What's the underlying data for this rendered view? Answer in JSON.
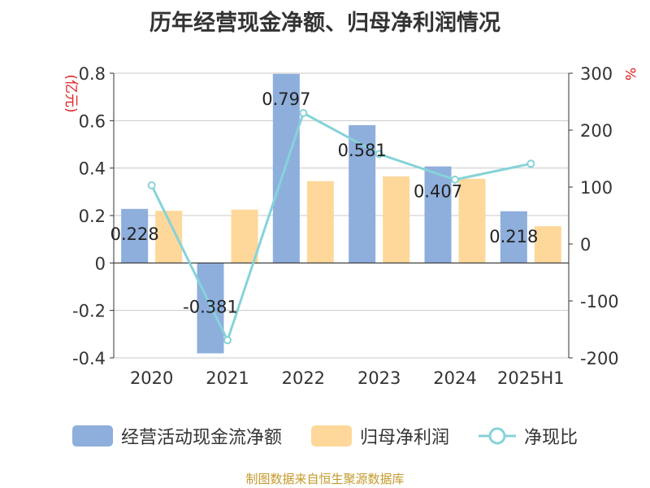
{
  "chart_data": {
    "type": "bar",
    "title": "历年经营现金净额、归母净利润情况",
    "categories": [
      "2020",
      "2021",
      "2022",
      "2023",
      "2024",
      "2025H1"
    ],
    "left_axis": {
      "unit": "(亿元)",
      "ylim": [
        -0.4,
        0.8
      ],
      "ticks": [
        "0.8",
        "0.6",
        "0.4",
        "0.2",
        "0",
        "-0.2",
        "-0.4"
      ]
    },
    "right_axis": {
      "unit": "%",
      "ylim": [
        -200,
        300
      ],
      "ticks": [
        "300",
        "200",
        "100",
        "0",
        "-100",
        "-200"
      ]
    },
    "series": [
      {
        "name": "经营活动现金流净额",
        "type": "bar",
        "axis": "left",
        "color": "#8eaedc",
        "values": [
          0.228,
          -0.381,
          0.797,
          0.581,
          0.407,
          0.218
        ],
        "labels": [
          "0.228",
          "-0.381",
          "0.797",
          "0.581",
          "0.407",
          "0.218"
        ]
      },
      {
        "name": "归母净利润",
        "type": "bar",
        "axis": "left",
        "color": "#fdd89a",
        "values": [
          0.22,
          0.225,
          0.345,
          0.365,
          0.355,
          0.155
        ]
      },
      {
        "name": "净现比",
        "type": "line",
        "axis": "right",
        "color": "#86d3d9",
        "values": [
          103,
          -169,
          230,
          158,
          113,
          141
        ]
      }
    ],
    "grid": true,
    "legend_position": "bottom"
  },
  "footer": "制图数据来自恒生聚源数据库"
}
